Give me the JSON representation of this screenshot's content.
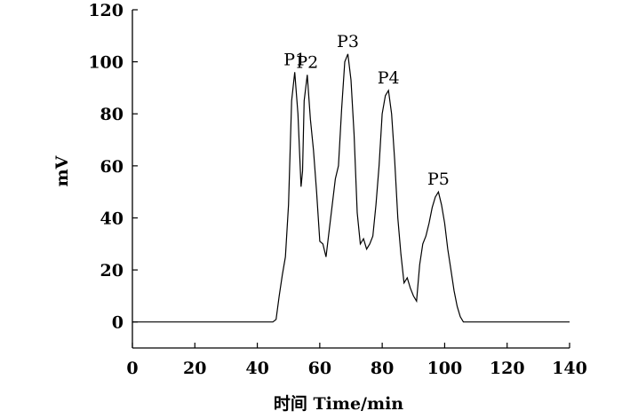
{
  "chart_data": {
    "type": "line",
    "title": "",
    "xlabel": "时间 Time/min",
    "ylabel": "mV",
    "xlim": [
      0,
      140
    ],
    "ylim": [
      -10,
      120
    ],
    "xticks": [
      0,
      20,
      40,
      60,
      80,
      100,
      120,
      140
    ],
    "yticks": [
      0,
      20,
      40,
      60,
      80,
      100,
      120
    ],
    "grid": false,
    "series": [
      {
        "x": [
          0,
          10,
          20,
          30,
          40,
          45,
          46,
          47,
          48,
          49,
          50,
          51,
          52,
          53,
          54,
          54.5,
          55,
          56,
          57,
          58,
          59,
          60,
          61,
          62,
          63,
          64,
          65,
          66,
          67,
          68,
          69,
          70,
          71,
          72,
          73,
          74,
          75,
          76,
          77,
          78,
          79,
          80,
          81,
          82,
          83,
          84,
          85,
          86,
          87,
          88,
          89,
          90,
          91,
          92,
          93,
          94,
          95,
          96,
          97,
          98,
          99,
          100,
          101,
          102,
          103,
          104,
          105,
          106,
          110,
          120,
          130,
          140
        ],
        "y": [
          0,
          0,
          0,
          0,
          0,
          0,
          1,
          10,
          18,
          25,
          45,
          85,
          96,
          80,
          52,
          58,
          85,
          95,
          78,
          66,
          50,
          31,
          30,
          25,
          35,
          45,
          55,
          60,
          82,
          100,
          103,
          93,
          72,
          42,
          30,
          32,
          28,
          30,
          33,
          45,
          60,
          80,
          87,
          89,
          80,
          62,
          40,
          26,
          15,
          17,
          13,
          10,
          8,
          22,
          30,
          33,
          38,
          44,
          48,
          50,
          45,
          38,
          28,
          20,
          12,
          6,
          2,
          0,
          0,
          0,
          0,
          0
        ]
      }
    ],
    "annotations": [
      {
        "text": "P1",
        "x": 52,
        "y": 96
      },
      {
        "text": "P2",
        "x": 56,
        "y": 95
      },
      {
        "text": "P3",
        "x": 69,
        "y": 103
      },
      {
        "text": "P4",
        "x": 82,
        "y": 89
      },
      {
        "text": "P5",
        "x": 98,
        "y": 50
      }
    ]
  }
}
